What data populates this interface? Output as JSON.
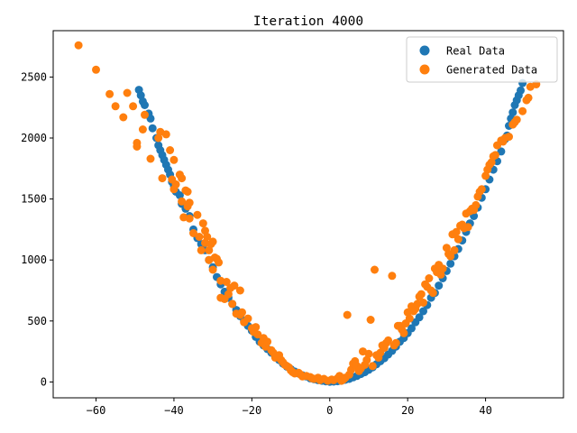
{
  "chart_data": {
    "type": "scatter",
    "title": "Iteration 4000",
    "xlabel": "",
    "ylabel": "",
    "xlim": [
      -71,
      60
    ],
    "ylim": [
      -130,
      2880
    ],
    "xticks": [
      -60,
      -40,
      -20,
      0,
      20,
      40
    ],
    "yticks": [
      0,
      500,
      1000,
      1500,
      2000,
      2500
    ],
    "grid": false,
    "legend": "top-right",
    "series": [
      {
        "name": "Real Data",
        "color": "#1f77b4",
        "points": [
          [
            -49,
            2395
          ],
          [
            -48.5,
            2350
          ],
          [
            -48,
            2300
          ],
          [
            -47.5,
            2270
          ],
          [
            -46.5,
            2200
          ],
          [
            -46,
            2160
          ],
          [
            -45.5,
            2080
          ],
          [
            -44.5,
            2000
          ],
          [
            -44,
            1940
          ],
          [
            -43.5,
            1900
          ],
          [
            -43,
            1860
          ],
          [
            -42.5,
            1820
          ],
          [
            -42,
            1780
          ],
          [
            -41.5,
            1740
          ],
          [
            -41,
            1700
          ],
          [
            -40.5,
            1640
          ],
          [
            -40,
            1610
          ],
          [
            -39.5,
            1560
          ],
          [
            -38.5,
            1530
          ],
          [
            -38,
            1460
          ],
          [
            -37,
            1420
          ],
          [
            -36,
            1360
          ],
          [
            -35,
            1250
          ],
          [
            -34,
            1180
          ],
          [
            -33,
            1130
          ],
          [
            -32,
            1080
          ],
          [
            -31,
            1000
          ],
          [
            -30,
            940
          ],
          [
            -29,
            860
          ],
          [
            -28,
            800
          ],
          [
            -27,
            740
          ],
          [
            -26,
            690
          ],
          [
            -25,
            640
          ],
          [
            -24,
            590
          ],
          [
            -23,
            540
          ],
          [
            -22,
            500
          ],
          [
            -21,
            460
          ],
          [
            -20,
            420
          ],
          [
            -19,
            370
          ],
          [
            -18,
            330
          ],
          [
            -17,
            300
          ],
          [
            -16,
            270
          ],
          [
            -15,
            240
          ],
          [
            -14,
            210
          ],
          [
            -13,
            180
          ],
          [
            -12,
            150
          ],
          [
            -11,
            125
          ],
          [
            -10,
            105
          ],
          [
            -9,
            85
          ],
          [
            -8,
            70
          ],
          [
            -7,
            55
          ],
          [
            -6,
            45
          ],
          [
            -5,
            30
          ],
          [
            -4,
            22
          ],
          [
            -3,
            15
          ],
          [
            -2,
            10
          ],
          [
            -1,
            5
          ],
          [
            0,
            2
          ],
          [
            1,
            3
          ],
          [
            2,
            6
          ],
          [
            3,
            10
          ],
          [
            4,
            18
          ],
          [
            5,
            25
          ],
          [
            6,
            38
          ],
          [
            7,
            50
          ],
          [
            8,
            65
          ],
          [
            9,
            80
          ],
          [
            10,
            100
          ],
          [
            11,
            120
          ],
          [
            12,
            145
          ],
          [
            13,
            170
          ],
          [
            14,
            195
          ],
          [
            15,
            225
          ],
          [
            16,
            255
          ],
          [
            17,
            290
          ],
          [
            18,
            330
          ],
          [
            19,
            360
          ],
          [
            20,
            400
          ],
          [
            21,
            440
          ],
          [
            22,
            490
          ],
          [
            23,
            530
          ],
          [
            24,
            580
          ],
          [
            25,
            630
          ],
          [
            26,
            690
          ],
          [
            27,
            730
          ],
          [
            28,
            790
          ],
          [
            29,
            850
          ],
          [
            30,
            910
          ],
          [
            31,
            970
          ],
          [
            32,
            1030
          ],
          [
            33,
            1090
          ],
          [
            34,
            1160
          ],
          [
            35,
            1230
          ],
          [
            36,
            1300
          ],
          [
            37,
            1360
          ],
          [
            38,
            1430
          ],
          [
            39,
            1510
          ],
          [
            40,
            1580
          ],
          [
            41,
            1660
          ],
          [
            42,
            1740
          ],
          [
            43,
            1810
          ],
          [
            44,
            1890
          ],
          [
            45,
            1990
          ],
          [
            45.5,
            2020
          ],
          [
            46,
            2100
          ],
          [
            46.5,
            2160
          ],
          [
            47,
            2210
          ],
          [
            47.5,
            2270
          ],
          [
            48,
            2310
          ],
          [
            48.5,
            2350
          ],
          [
            49,
            2390
          ],
          [
            49.5,
            2450
          ]
        ]
      },
      {
        "name": "Generated Data",
        "color": "#ff7f0e",
        "points": [
          [
            -64.5,
            2760
          ],
          [
            -60,
            2560
          ],
          [
            -56.5,
            2360
          ],
          [
            -55,
            2260
          ],
          [
            -53,
            2170
          ],
          [
            -52,
            2370
          ],
          [
            -50.5,
            2260
          ],
          [
            -49.5,
            1960
          ],
          [
            -49.5,
            1930
          ],
          [
            -48,
            2070
          ],
          [
            -47.5,
            2190
          ],
          [
            -46,
            1830
          ],
          [
            -44,
            2000
          ],
          [
            -43.5,
            2050
          ],
          [
            -43,
            1670
          ],
          [
            -42,
            2030
          ],
          [
            -41,
            1900
          ],
          [
            -40.5,
            1660
          ],
          [
            -40,
            1820
          ],
          [
            -40,
            1580
          ],
          [
            -39.5,
            1620
          ],
          [
            -38.5,
            1700
          ],
          [
            -38,
            1670
          ],
          [
            -38,
            1480
          ],
          [
            -37.5,
            1350
          ],
          [
            -37,
            1570
          ],
          [
            -36.5,
            1560
          ],
          [
            -36.5,
            1440
          ],
          [
            -36,
            1470
          ],
          [
            -36,
            1340
          ],
          [
            -35,
            1220
          ],
          [
            -34,
            1370
          ],
          [
            -33.5,
            1190
          ],
          [
            -33,
            1080
          ],
          [
            -32.5,
            1300
          ],
          [
            -32,
            1240
          ],
          [
            -32,
            1140
          ],
          [
            -31.5,
            1190
          ],
          [
            -31,
            1080
          ],
          [
            -31,
            1000
          ],
          [
            -30.5,
            1130
          ],
          [
            -30,
            1150
          ],
          [
            -30,
            920
          ],
          [
            -29.5,
            1020
          ],
          [
            -29,
            1010
          ],
          [
            -28.5,
            980
          ],
          [
            -28,
            830
          ],
          [
            -28,
            690
          ],
          [
            -27,
            680
          ],
          [
            -26.5,
            820
          ],
          [
            -26,
            720
          ],
          [
            -25.5,
            770
          ],
          [
            -25,
            640
          ],
          [
            -24.5,
            790
          ],
          [
            -24,
            560
          ],
          [
            -23,
            750
          ],
          [
            -23,
            550
          ],
          [
            -22.5,
            570
          ],
          [
            -22,
            490
          ],
          [
            -21,
            520
          ],
          [
            -20,
            440
          ],
          [
            -19.5,
            410
          ],
          [
            -19,
            450
          ],
          [
            -18.5,
            390
          ],
          [
            -17.5,
            320
          ],
          [
            -17,
            360
          ],
          [
            -16.5,
            290
          ],
          [
            -16,
            330
          ],
          [
            -15,
            260
          ],
          [
            -14.5,
            240
          ],
          [
            -14,
            200
          ],
          [
            -13,
            220
          ],
          [
            -12.5,
            180
          ],
          [
            -12,
            160
          ],
          [
            -11.5,
            140
          ],
          [
            -11,
            130
          ],
          [
            -10.5,
            120
          ],
          [
            -10,
            95
          ],
          [
            -9.5,
            80
          ],
          [
            -9,
            70
          ],
          [
            -8,
            75
          ],
          [
            -7.5,
            60
          ],
          [
            -7,
            45
          ],
          [
            -6,
            50
          ],
          [
            -5,
            40
          ],
          [
            -4.5,
            30
          ],
          [
            -4,
            25
          ],
          [
            -3,
            35
          ],
          [
            -2.5,
            15
          ],
          [
            -1.5,
            25
          ],
          [
            -0.5,
            10
          ],
          [
            0.5,
            20
          ],
          [
            1,
            15
          ],
          [
            2,
            30
          ],
          [
            2.5,
            50
          ],
          [
            3,
            10
          ],
          [
            3.5,
            20
          ],
          [
            4,
            35
          ],
          [
            4.5,
            550
          ],
          [
            5,
            60
          ],
          [
            5.5,
            100
          ],
          [
            6,
            150
          ],
          [
            6.5,
            170
          ],
          [
            7,
            130
          ],
          [
            7.5,
            90
          ],
          [
            8,
            110
          ],
          [
            8.5,
            250
          ],
          [
            9,
            140
          ],
          [
            9.5,
            180
          ],
          [
            10,
            230
          ],
          [
            10.5,
            510
          ],
          [
            11,
            130
          ],
          [
            11.5,
            920
          ],
          [
            12,
            220
          ],
          [
            12.5,
            200
          ],
          [
            13,
            240
          ],
          [
            13.5,
            300
          ],
          [
            14,
            280
          ],
          [
            14.5,
            320
          ],
          [
            15,
            340
          ],
          [
            16,
            870
          ],
          [
            16.5,
            300
          ],
          [
            17,
            320
          ],
          [
            17.5,
            460
          ],
          [
            18,
            460
          ],
          [
            18.5,
            430
          ],
          [
            19,
            400
          ],
          [
            19.5,
            480
          ],
          [
            20,
            570
          ],
          [
            20.5,
            520
          ],
          [
            21,
            620
          ],
          [
            21.5,
            580
          ],
          [
            22,
            600
          ],
          [
            22.5,
            640
          ],
          [
            23,
            700
          ],
          [
            23.5,
            720
          ],
          [
            24,
            650
          ],
          [
            24.5,
            800
          ],
          [
            25,
            780
          ],
          [
            25.5,
            850
          ],
          [
            26,
            750
          ],
          [
            26.5,
            730
          ],
          [
            27,
            930
          ],
          [
            27.5,
            900
          ],
          [
            28,
            960
          ],
          [
            28.5,
            880
          ],
          [
            29,
            930
          ],
          [
            30,
            1100
          ],
          [
            30.5,
            1050
          ],
          [
            31,
            1030
          ],
          [
            31.5,
            1210
          ],
          [
            32,
            1080
          ],
          [
            32.5,
            1230
          ],
          [
            33,
            1170
          ],
          [
            33.5,
            1280
          ],
          [
            34,
            1290
          ],
          [
            34.5,
            1260
          ],
          [
            35,
            1380
          ],
          [
            35.5,
            1270
          ],
          [
            36,
            1400
          ],
          [
            36.5,
            1420
          ],
          [
            37,
            1410
          ],
          [
            37.5,
            1450
          ],
          [
            38,
            1520
          ],
          [
            38.5,
            1560
          ],
          [
            39,
            1580
          ],
          [
            40,
            1690
          ],
          [
            40.5,
            1740
          ],
          [
            41,
            1780
          ],
          [
            41.5,
            1800
          ],
          [
            42,
            1850
          ],
          [
            42.5,
            1860
          ],
          [
            43,
            1940
          ],
          [
            44,
            1980
          ],
          [
            44.5,
            1970
          ],
          [
            45,
            2000
          ],
          [
            46,
            2010
          ],
          [
            47,
            2110
          ],
          [
            47.5,
            2130
          ],
          [
            48,
            2150
          ],
          [
            49.5,
            2220
          ],
          [
            50.5,
            2310
          ],
          [
            51,
            2330
          ],
          [
            51.5,
            2420
          ],
          [
            53,
            2440
          ]
        ]
      }
    ]
  }
}
